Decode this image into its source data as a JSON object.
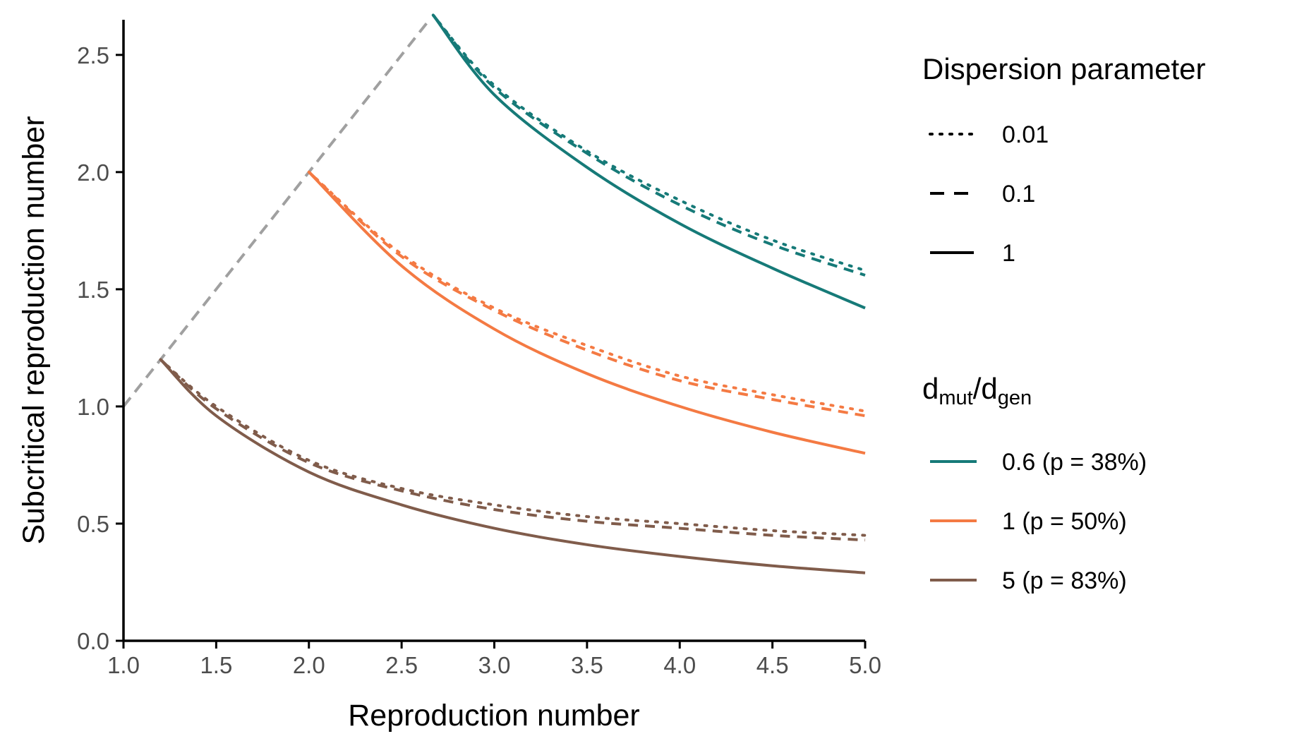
{
  "chart_data": {
    "type": "line",
    "title": "",
    "xlabel": "Reproduction number",
    "ylabel": "Subcritical reproduction number",
    "xlim": [
      1.0,
      5.0
    ],
    "ylim": [
      0.0,
      2.65
    ],
    "x_ticks": [
      "1.0",
      "1.5",
      "2.0",
      "2.5",
      "3.0",
      "3.5",
      "4.0",
      "4.5",
      "5.0"
    ],
    "y_ticks": [
      "0.0",
      "0.5",
      "1.0",
      "1.5",
      "2.0",
      "2.5"
    ],
    "grid": false,
    "legend_placement": "right",
    "reference_line": {
      "x": [
        1.0,
        2.65
      ],
      "y": [
        1.0,
        2.65
      ],
      "color": "#a0a0a0",
      "style": "dashed"
    },
    "legend_linetype": {
      "title": "Dispersion parameter",
      "entries": [
        {
          "label": "0.01",
          "style": "dotted"
        },
        {
          "label": "0.1",
          "style": "dashed"
        },
        {
          "label": "1",
          "style": "solid"
        }
      ]
    },
    "legend_color": {
      "title_main": "d",
      "title_sub1": "mut",
      "title_slash": "/d",
      "title_sub2": "gen",
      "entries": [
        {
          "label": "0.6 (p = 38%)",
          "color": "#167a78"
        },
        {
          "label": "1 (p = 50%)",
          "color": "#f47a43"
        },
        {
          "label": "5 (p = 83%)",
          "color": "#805c4b"
        }
      ]
    },
    "series": [
      {
        "group": "0.6 (p = 38%)",
        "dispersion": "1",
        "style": "solid",
        "color": "#167a78",
        "x": [
          2.67,
          3.0,
          3.5,
          4.0,
          4.5,
          5.0
        ],
        "y": [
          2.67,
          2.33,
          2.02,
          1.78,
          1.59,
          1.42
        ]
      },
      {
        "group": "0.6 (p = 38%)",
        "dispersion": "0.1",
        "style": "dashed",
        "color": "#167a78",
        "x": [
          2.67,
          3.0,
          3.5,
          4.0,
          4.5,
          5.0
        ],
        "y": [
          2.67,
          2.36,
          2.08,
          1.86,
          1.69,
          1.56
        ]
      },
      {
        "group": "0.6 (p = 38%)",
        "dispersion": "0.01",
        "style": "dotted",
        "color": "#167a78",
        "x": [
          2.67,
          3.0,
          3.5,
          4.0,
          4.5,
          5.0
        ],
        "y": [
          2.67,
          2.37,
          2.09,
          1.88,
          1.71,
          1.58
        ]
      },
      {
        "group": "1 (p = 50%)",
        "dispersion": "1",
        "style": "solid",
        "color": "#f47a43",
        "x": [
          2.0,
          2.5,
          3.0,
          3.5,
          4.0,
          4.5,
          5.0
        ],
        "y": [
          2.0,
          1.6,
          1.33,
          1.14,
          1.0,
          0.89,
          0.8
        ]
      },
      {
        "group": "1 (p = 50%)",
        "dispersion": "0.1",
        "style": "dashed",
        "color": "#f47a43",
        "x": [
          2.0,
          2.5,
          3.0,
          3.5,
          4.0,
          4.5,
          5.0
        ],
        "y": [
          2.0,
          1.64,
          1.41,
          1.24,
          1.11,
          1.03,
          0.96
        ]
      },
      {
        "group": "1 (p = 50%)",
        "dispersion": "0.01",
        "style": "dotted",
        "color": "#f47a43",
        "x": [
          2.0,
          2.5,
          3.0,
          3.5,
          4.0,
          4.5,
          5.0
        ],
        "y": [
          2.0,
          1.65,
          1.42,
          1.26,
          1.13,
          1.05,
          0.98
        ]
      },
      {
        "group": "5 (p = 83%)",
        "dispersion": "1",
        "style": "solid",
        "color": "#805c4b",
        "x": [
          1.2,
          1.5,
          2.0,
          2.5,
          3.0,
          3.5,
          4.0,
          4.5,
          5.0
        ],
        "y": [
          1.2,
          0.96,
          0.72,
          0.58,
          0.48,
          0.41,
          0.36,
          0.32,
          0.29
        ]
      },
      {
        "group": "5 (p = 83%)",
        "dispersion": "0.1",
        "style": "dashed",
        "color": "#805c4b",
        "x": [
          1.2,
          1.5,
          2.0,
          2.5,
          3.0,
          3.5,
          4.0,
          4.5,
          5.0
        ],
        "y": [
          1.2,
          0.99,
          0.76,
          0.64,
          0.56,
          0.51,
          0.48,
          0.45,
          0.43
        ]
      },
      {
        "group": "5 (p = 83%)",
        "dispersion": "0.01",
        "style": "dotted",
        "color": "#805c4b",
        "x": [
          1.2,
          1.5,
          2.0,
          2.5,
          3.0,
          3.5,
          4.0,
          4.5,
          5.0
        ],
        "y": [
          1.2,
          1.0,
          0.77,
          0.65,
          0.58,
          0.53,
          0.5,
          0.47,
          0.45
        ]
      }
    ]
  }
}
